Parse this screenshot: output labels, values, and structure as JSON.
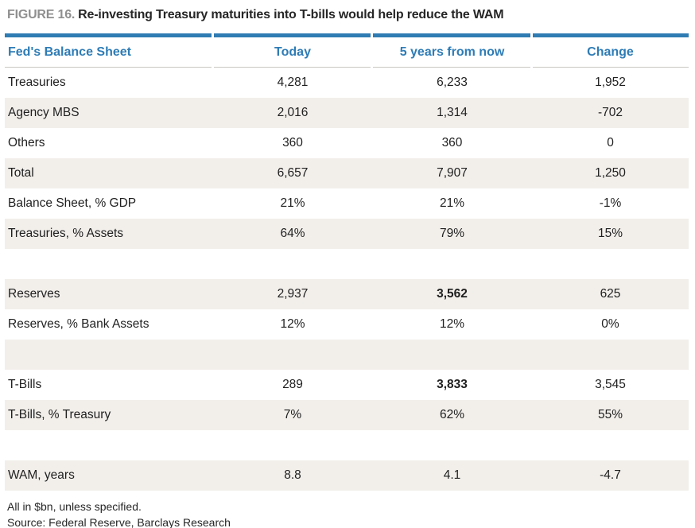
{
  "title": {
    "figure_label": "FIGURE 16.",
    "text": "Re-investing Treasury maturities into T-bills would help reduce the WAM"
  },
  "table": {
    "columns": [
      "Fed's Balance Sheet",
      "Today",
      "5 years from now",
      "Change"
    ],
    "rows": [
      {
        "cells": [
          "Treasuries",
          "4,281",
          "6,233",
          "1,952"
        ]
      },
      {
        "cells": [
          "Agency MBS",
          "2,016",
          "1,314",
          "-702"
        ]
      },
      {
        "cells": [
          "Others",
          "360",
          "360",
          "0"
        ]
      },
      {
        "cells": [
          "Total",
          "6,657",
          "7,907",
          "1,250"
        ]
      },
      {
        "cells": [
          "Balance Sheet, % GDP",
          "21%",
          "21%",
          "-1%"
        ]
      },
      {
        "cells": [
          "Treasuries, % Assets",
          "64%",
          "79%",
          "15%"
        ]
      },
      {
        "cells": [
          "",
          "",
          "",
          ""
        ],
        "blank": true
      },
      {
        "cells": [
          "Reserves",
          "2,937",
          "3,562",
          "625"
        ],
        "bold_cols": [
          2
        ]
      },
      {
        "cells": [
          "Reserves, % Bank Assets",
          "12%",
          "12%",
          "0%"
        ]
      },
      {
        "cells": [
          "",
          "",
          "",
          ""
        ],
        "blank": true
      },
      {
        "cells": [
          "T-Bills",
          "289",
          "3,833",
          "3,545"
        ],
        "bold_cols": [
          2
        ]
      },
      {
        "cells": [
          "T-Bills, % Treasury",
          "7%",
          "62%",
          "55%"
        ]
      },
      {
        "cells": [
          "",
          "",
          "",
          ""
        ],
        "blank": true
      },
      {
        "cells": [
          "WAM, years",
          "8.8",
          "4.1",
          "-4.7"
        ]
      }
    ]
  },
  "footnotes": [
    "All in $bn, unless specified.",
    "Source: Federal Reserve, Barclays Research"
  ],
  "colors": {
    "accent_blue": "#2f7bb3",
    "row_alt_background": "#f2efeb",
    "figure_label_gray": "#8f8f8f"
  }
}
